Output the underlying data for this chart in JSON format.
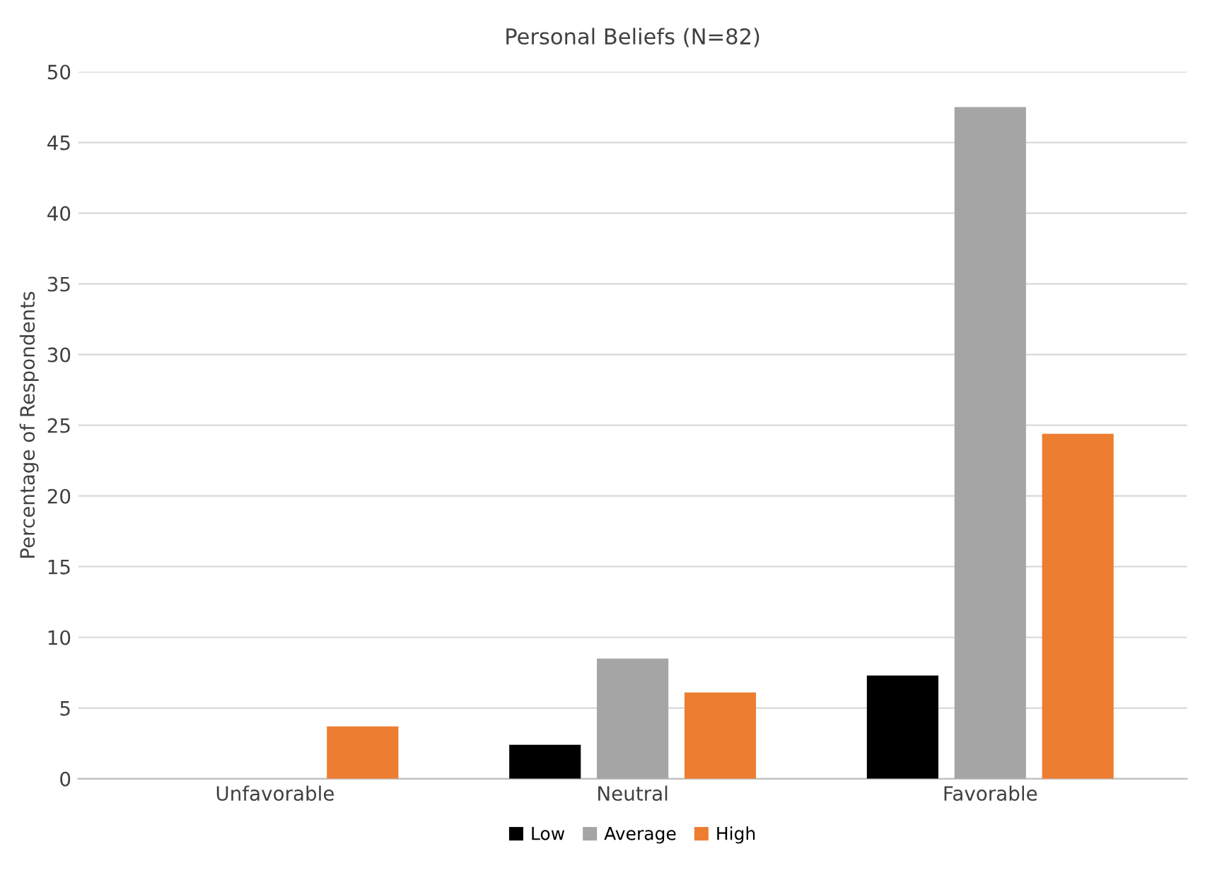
{
  "chart_data": {
    "type": "bar",
    "title": "Personal Beliefs (N=82)",
    "ylabel": "Percentage of Respondents",
    "categories": [
      "Unfavorable",
      "Neutral",
      "Favorable"
    ],
    "series": [
      {
        "name": "Low",
        "color": "#000000",
        "values": [
          0,
          2.4,
          7.3
        ]
      },
      {
        "name": "Average",
        "color": "#a5a5a5",
        "values": [
          0,
          8.5,
          47.5
        ]
      },
      {
        "name": "High",
        "color": "#ed7d31",
        "values": [
          3.7,
          6.1,
          24.4
        ]
      }
    ],
    "ylim": [
      0,
      50
    ],
    "yticks": [
      0,
      5,
      10,
      15,
      20,
      25,
      30,
      35,
      40,
      45,
      50
    ],
    "grid": "y",
    "legend": "bottom"
  }
}
